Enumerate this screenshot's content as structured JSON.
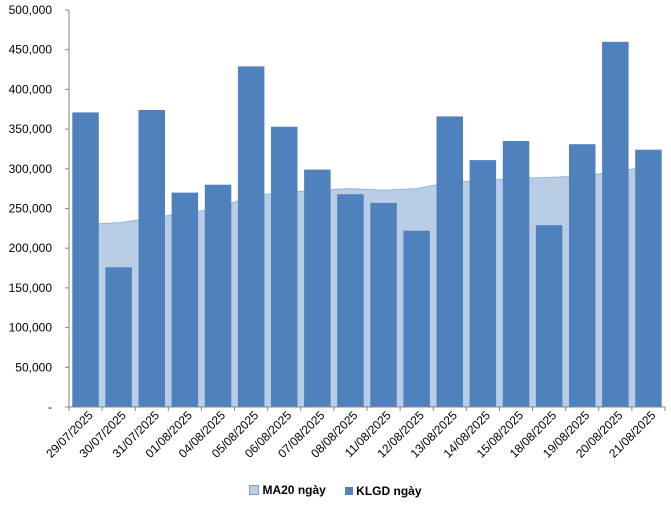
{
  "chart_data": {
    "type": "bar",
    "categories": [
      "29/07/2025",
      "30/07/2025",
      "31/07/2025",
      "01/08/2025",
      "04/08/2025",
      "05/08/2025",
      "06/08/2025",
      "07/08/2025",
      "08/08/2025",
      "11/08/2025",
      "12/08/2025",
      "13/08/2025",
      "14/08/2025",
      "15/08/2025",
      "18/08/2025",
      "19/08/2025",
      "20/08/2025",
      "21/08/2025"
    ],
    "series": [
      {
        "name": "KLGD ngày",
        "type": "bar",
        "color": "#4f81bd",
        "values": [
          371000,
          176000,
          374000,
          270000,
          280000,
          429000,
          353000,
          299000,
          268000,
          257000,
          222000,
          366000,
          311000,
          335000,
          229000,
          331000,
          460000,
          324000
        ]
      },
      {
        "name": "MA20 ngày",
        "type": "area",
        "color": "#b9cde5",
        "values": [
          230000,
          232000,
          238000,
          244000,
          250000,
          266000,
          270000,
          273000,
          275000,
          273000,
          275000,
          283000,
          285000,
          288000,
          289000,
          291000,
          296000,
          303000
        ]
      }
    ],
    "ylim": [
      0,
      500000
    ],
    "yticks": [
      "-",
      "50,000",
      "100,000",
      "150,000",
      "200,000",
      "250,000",
      "300,000",
      "350,000",
      "400,000",
      "450,000",
      "500,000"
    ],
    "legend_position": "bottom",
    "grid": false
  }
}
